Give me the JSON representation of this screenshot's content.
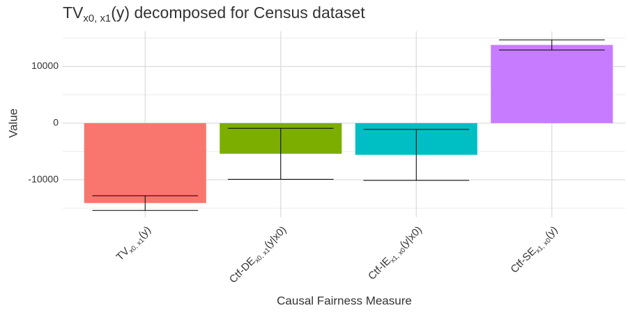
{
  "chart_data": {
    "type": "bar",
    "title": [
      {
        "text": "TV"
      },
      {
        "sub": "x0, x1"
      },
      {
        "text": "(y) decomposed for Census dataset"
      }
    ],
    "x_label": "Causal Fairness Measure",
    "y_label": "Value",
    "categories": [
      [
        {
          "text": "TV"
        },
        {
          "sub": "x0, x1"
        },
        {
          "text": "(y)"
        }
      ],
      [
        {
          "text": "Ctf-DE"
        },
        {
          "sub": "x0, x1"
        },
        {
          "text": "(y|x0)"
        }
      ],
      [
        {
          "text": "Ctf-IE"
        },
        {
          "sub": "x1, x0"
        },
        {
          "text": "(y|x0)"
        }
      ],
      [
        {
          "text": "Ctf-SE"
        },
        {
          "sub": "x1, x0"
        },
        {
          "text": "(y)"
        }
      ]
    ],
    "values": [
      -14100,
      -5400,
      -5600,
      13800
    ],
    "errors": [
      1300,
      4500,
      4500,
      900
    ],
    "colors": [
      "#F8766D",
      "#7CAE00",
      "#00BFC4",
      "#C77CFF"
    ],
    "ylim": [
      -16600,
      16200
    ],
    "yticks": [
      -10000,
      0,
      10000
    ],
    "grid": true
  }
}
